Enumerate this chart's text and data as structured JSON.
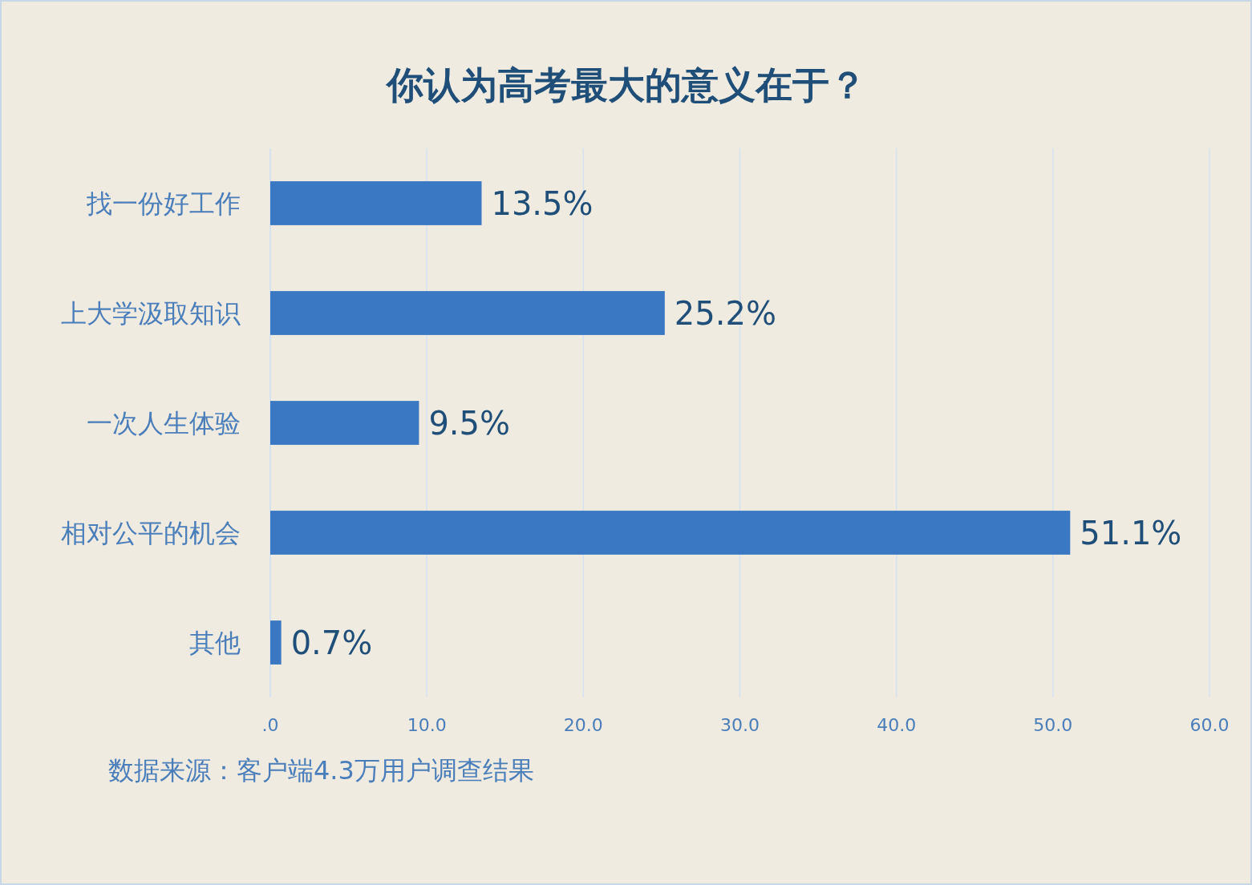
{
  "chart_data": {
    "type": "bar",
    "orientation": "horizontal",
    "title": "你认为高考最大的意义在于？",
    "categories": [
      "找一份好工作",
      "上大学汲取知识",
      "一次人生体验",
      "相对公平的机会",
      "其他"
    ],
    "values": [
      13.5,
      25.2,
      9.5,
      51.1,
      0.7
    ],
    "value_labels": [
      "13.5%",
      "25.2%",
      "9.5%",
      "51.1%",
      "0.7%"
    ],
    "color": "#3a78c3",
    "xlim": [
      0,
      60
    ],
    "xticks": [
      {
        "value": 0,
        "label": ".0"
      },
      {
        "value": 10,
        "label": "10.0"
      },
      {
        "value": 20,
        "label": "20.0"
      },
      {
        "value": 30,
        "label": "30.0"
      },
      {
        "value": 40,
        "label": "40.0"
      },
      {
        "value": 50,
        "label": "50.0"
      },
      {
        "value": 60,
        "label": "60.0"
      }
    ],
    "grid": "x",
    "annotations": [
      "数据来源：客户端4.3万用户调查结果"
    ]
  }
}
